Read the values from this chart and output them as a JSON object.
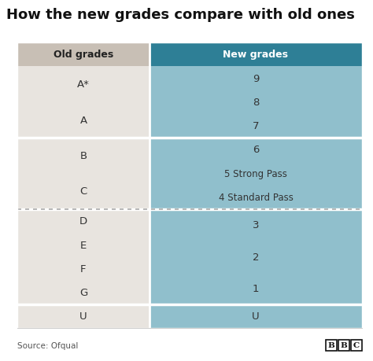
{
  "title": "How the new grades compare with old ones",
  "title_fontsize": 13,
  "header_old": "Old grades",
  "header_new": "New grades",
  "header_old_bg": "#c8bfb5",
  "header_new_bg": "#2e7f96",
  "header_new_text_color": "#ffffff",
  "header_old_text_color": "#222222",
  "row_bg_light": "#e8e4df",
  "row_bg_right_light": "#90bfcc",
  "source_text": "Source: Ofqual",
  "bbc_text": "BBC",
  "dashed_line_color": "#aaaaaa",
  "fig_bg": "#ffffff",
  "sections": [
    {
      "old_labels": [
        "A*",
        "A"
      ],
      "new_labels": [
        "9",
        "8",
        "7"
      ],
      "units": 3
    },
    {
      "old_labels": [
        "B",
        "C"
      ],
      "new_labels": [
        "6",
        "5 Strong Pass",
        "4 Standard Pass"
      ],
      "units": 3
    },
    {
      "old_labels": [
        "D",
        "E",
        "F",
        "G"
      ],
      "new_labels": [
        "3",
        "2",
        "1"
      ],
      "units": 4
    },
    {
      "old_labels": [
        "U"
      ],
      "new_labels": [
        "U"
      ],
      "units": 1
    }
  ]
}
